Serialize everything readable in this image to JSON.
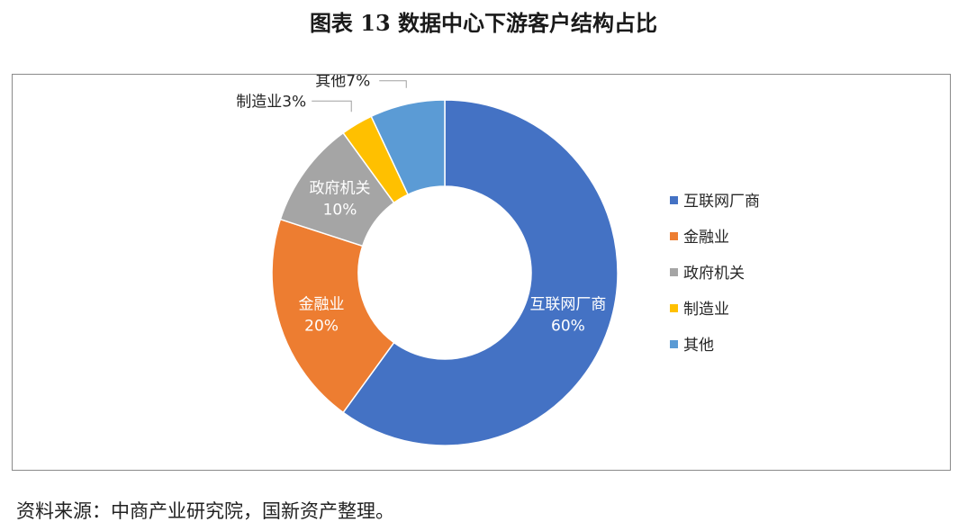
{
  "figure": {
    "title": "图表 13  数据中心下游客户结构占比",
    "source": "资料来源：中商产业研究院，国新资产整理。"
  },
  "chart_data": {
    "type": "pie",
    "variant": "donut",
    "categories": [
      "互联网厂商",
      "金融业",
      "政府机关",
      "制造业",
      "其他"
    ],
    "values": [
      60,
      20,
      10,
      3,
      7
    ],
    "unit": "%",
    "labels": [
      "互联网厂商 60%",
      "金融业 20%",
      "政府机关 10%",
      "制造业3%",
      "其他7%"
    ],
    "colors": [
      "#4472C4",
      "#ED7D31",
      "#A5A5A5",
      "#FFC000",
      "#5B9BD5"
    ],
    "legend": {
      "position": "right",
      "entries": [
        "互联网厂商",
        "金融业",
        "政府机关",
        "制造业",
        "其他"
      ]
    },
    "start_angle_deg": 0,
    "direction": "clockwise"
  }
}
